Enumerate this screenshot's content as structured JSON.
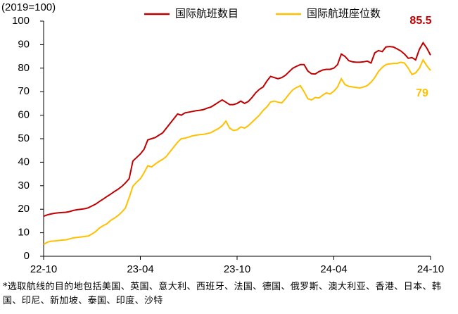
{
  "chart_data": {
    "type": "line",
    "ylabel": "(2019=100)",
    "categories": [
      "22-10",
      null,
      null,
      null,
      null,
      null,
      null,
      null,
      null,
      null,
      null,
      null,
      null,
      null,
      null,
      null,
      null,
      null,
      null,
      null,
      null,
      null,
      null,
      null,
      null,
      null,
      "23-04",
      null,
      null,
      null,
      null,
      null,
      null,
      null,
      null,
      null,
      null,
      null,
      null,
      null,
      null,
      null,
      null,
      null,
      null,
      null,
      null,
      null,
      null,
      null,
      null,
      null,
      "23-10",
      null,
      null,
      null,
      null,
      null,
      null,
      null,
      null,
      null,
      null,
      null,
      null,
      null,
      null,
      null,
      null,
      null,
      null,
      null,
      null,
      null,
      null,
      null,
      null,
      null,
      "24-04",
      null,
      null,
      null,
      null,
      null,
      null,
      null,
      null,
      null,
      null,
      null,
      null,
      null,
      null,
      null,
      null,
      null,
      null,
      null,
      null,
      null,
      null,
      null,
      null,
      null,
      "24-10"
    ],
    "series": [
      {
        "name": "国际航班数目",
        "color": "#c00000",
        "values": [
          17,
          17.6,
          18,
          18.3,
          18.5,
          18.6,
          18.7,
          19,
          19.5,
          19.8,
          20,
          20.2,
          20.6,
          21.4,
          22.2,
          23.3,
          24.3,
          25.4,
          26.4,
          27.5,
          28.5,
          29.7,
          31.2,
          33,
          40.5,
          42,
          43.5,
          45.5,
          49.5,
          50,
          50.5,
          51.5,
          52.5,
          54.5,
          56.5,
          58.5,
          60.5,
          60,
          61,
          61.3,
          61.6,
          61.9,
          62.1,
          62.4,
          63,
          63.5,
          64.5,
          65.5,
          66.5,
          65.5,
          64.5,
          64.5,
          65,
          66,
          65,
          65.8,
          67.5,
          69.5,
          71,
          72,
          74.5,
          76.5,
          76,
          75.5,
          76,
          77,
          78.5,
          80,
          80.8,
          81.5,
          81.5,
          78.8,
          77.6,
          77.5,
          78.5,
          79.2,
          79.5,
          79.5,
          80,
          81.5,
          86,
          85,
          83.2,
          82.7,
          82.5,
          82.5,
          82.7,
          83,
          82.2,
          86.5,
          87.5,
          87,
          89,
          89.2,
          89,
          88.2,
          87.3,
          86,
          84.2,
          84.5,
          83.5,
          88,
          90.8,
          88.5,
          85.5
        ]
      },
      {
        "name": "国际航班座位数",
        "color": "#ffc000",
        "values": [
          5,
          6,
          6.4,
          6.5,
          6.7,
          6.9,
          7,
          7.4,
          7.8,
          8,
          8.2,
          8.4,
          8.6,
          9.5,
          10.5,
          12,
          13,
          13.8,
          15.2,
          16.2,
          17.3,
          18.8,
          20.5,
          25,
          29.8,
          31.5,
          33,
          35.5,
          38.5,
          38,
          39.2,
          40.3,
          41.2,
          42.5,
          44.5,
          46.5,
          48.5,
          50,
          50.2,
          50.7,
          51.2,
          51.5,
          51.7,
          51.9,
          52.2,
          52.6,
          53.5,
          54.3,
          55.5,
          57.5,
          54.5,
          53.5,
          53.8,
          55,
          54.5,
          55.5,
          57,
          58.5,
          60,
          62,
          63.5,
          65.6,
          66,
          65.5,
          65.2,
          67,
          69,
          70.8,
          71.8,
          72.5,
          70,
          67,
          66.5,
          67.5,
          67.3,
          68.5,
          69.5,
          69,
          70.2,
          72,
          75.5,
          73,
          72.3,
          72,
          71.8,
          71.6,
          72,
          72.6,
          74,
          76,
          78.6,
          80.3,
          81.5,
          81.8,
          82,
          82,
          82.5,
          82.2,
          80,
          77.3,
          78,
          80,
          83.5,
          81,
          79
        ]
      }
    ],
    "annotations": [
      {
        "text": "85.5",
        "color": "#c00000"
      },
      {
        "text": "79",
        "color": "#ffc000"
      }
    ],
    "ylim": [
      0,
      100
    ],
    "yticks": [
      0,
      10,
      20,
      30,
      40,
      50,
      60,
      70,
      80,
      90,
      100
    ],
    "grid": false,
    "legend": "top",
    "note": "*选取航线的目的地包括美国、英国、意大利、西班牙、法国、德国、俄罗斯、澳大利亚、香港、日本、韩国、印尼、新加坡、泰国、印度、沙特"
  }
}
